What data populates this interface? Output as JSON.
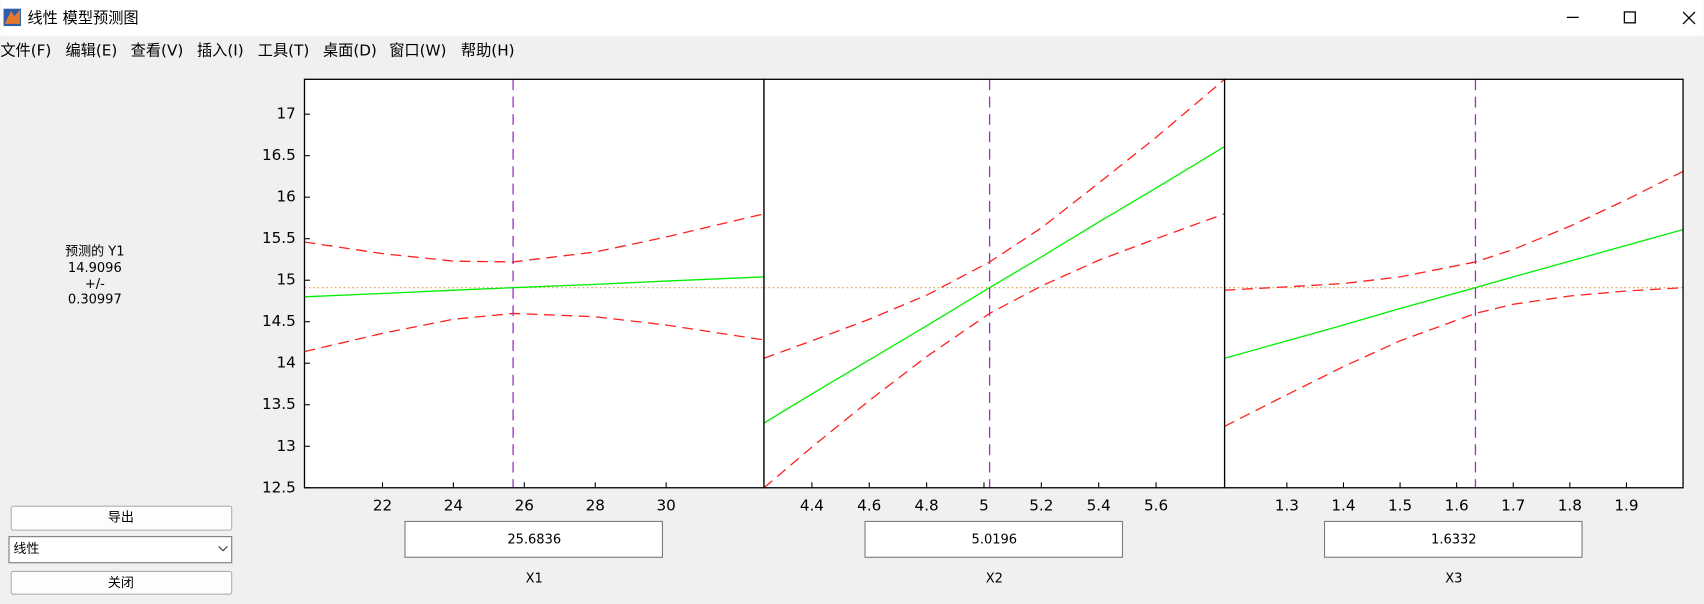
{
  "window": {
    "title": "线性 模型预测图"
  },
  "menu": [
    "文件(F)",
    "编辑(E)",
    "查看(V)",
    "插入(I)",
    "工具(T)",
    "桌面(D)",
    "窗口(W)",
    "帮助(H)"
  ],
  "prediction": {
    "label": "预测的 Y1",
    "value": 14.9096,
    "pm": "+/-",
    "interval": 0.30997,
    "color": "#d9a04a"
  },
  "buttons": {
    "export": "导出",
    "close": "关闭"
  },
  "model_select": "线性",
  "chart_data": [
    {
      "type": "line",
      "xlabel": "X1",
      "current_x": 25.6836,
      "cursor_color": "#9b30c0",
      "x": [
        19.8,
        22,
        24,
        25.6836,
        28,
        30,
        32.76
      ],
      "series": [
        {
          "color": "#00ee00",
          "linestyle": "-",
          "values": [
            14.8,
            14.84,
            14.88,
            14.91,
            14.95,
            14.99,
            15.04
          ]
        },
        {
          "color": "#ff2020",
          "linestyle": "--",
          "values": [
            14.14,
            14.36,
            14.53,
            14.6,
            14.56,
            14.46,
            14.28
          ]
        },
        {
          "color": "#ff2020",
          "linestyle": "--",
          "values": [
            15.46,
            15.32,
            15.23,
            15.22,
            15.34,
            15.52,
            15.8
          ]
        }
      ],
      "xlim": [
        19.8,
        32.76
      ],
      "xticks": [
        22,
        24,
        26,
        28,
        30
      ],
      "ylim": [
        12.5,
        17.42
      ],
      "yticks": [
        12.5,
        13,
        13.5,
        14,
        14.5,
        15,
        15.5,
        16,
        16.5,
        17
      ]
    },
    {
      "type": "line",
      "xlabel": "X2",
      "current_x": 5.0196,
      "cursor_color": "#9b30c0",
      "x": [
        4.233,
        4.4,
        4.6,
        4.8,
        5.0196,
        5.2,
        5.4,
        5.6,
        5.839
      ],
      "series": [
        {
          "color": "#00ee00",
          "linestyle": "-",
          "values": [
            13.28,
            13.63,
            14.04,
            14.45,
            14.91,
            15.28,
            15.7,
            16.11,
            16.61
          ]
        },
        {
          "color": "#ff2020",
          "linestyle": "--",
          "values": [
            12.5,
            12.99,
            13.55,
            14.08,
            14.6,
            14.93,
            15.24,
            15.5,
            15.8
          ]
        },
        {
          "color": "#ff2020",
          "linestyle": "--",
          "values": [
            14.06,
            14.27,
            14.53,
            14.82,
            15.22,
            15.63,
            16.17,
            16.72,
            17.42
          ]
        }
      ],
      "xlim": [
        4.233,
        5.839
      ],
      "xticks": [
        4.4,
        4.6,
        4.8,
        5,
        5.2,
        5.4,
        5.6
      ],
      "ylim": [
        12.5,
        17.42
      ]
    },
    {
      "type": "line",
      "xlabel": "X3",
      "current_x": 1.6332,
      "cursor_color": "#9b30c0",
      "x": [
        1.19,
        1.3,
        1.4,
        1.5,
        1.6332,
        1.7,
        1.8,
        1.9,
        2.0
      ],
      "series": [
        {
          "color": "#00ee00",
          "linestyle": "-",
          "values": [
            14.06,
            14.27,
            14.46,
            14.66,
            14.91,
            15.04,
            15.23,
            15.42,
            15.61
          ]
        },
        {
          "color": "#ff2020",
          "linestyle": "--",
          "values": [
            13.24,
            13.62,
            13.96,
            14.27,
            14.6,
            14.71,
            14.81,
            14.87,
            14.91
          ]
        },
        {
          "color": "#ff2020",
          "linestyle": "--",
          "values": [
            14.88,
            14.92,
            14.96,
            15.04,
            15.22,
            15.37,
            15.65,
            15.97,
            16.31
          ]
        }
      ],
      "xlim": [
        1.19,
        2.0
      ],
      "xticks": [
        1.3,
        1.4,
        1.5,
        1.6,
        1.7,
        1.8,
        1.9
      ],
      "ylim": [
        12.5,
        17.42
      ]
    }
  ]
}
